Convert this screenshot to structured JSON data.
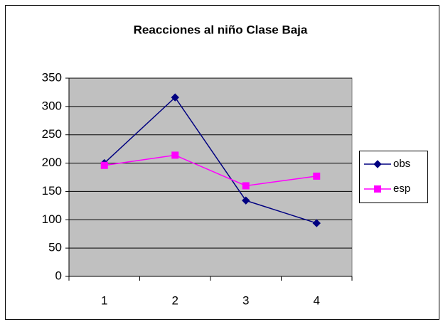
{
  "chart_data": {
    "type": "line",
    "title": "Reacciones al niño Clase Baja",
    "categories": [
      "1",
      "2",
      "3",
      "4"
    ],
    "series": [
      {
        "name": "obs",
        "color": "#000080",
        "marker": "diamond",
        "values": [
          200,
          316,
          134,
          94
        ]
      },
      {
        "name": "esp",
        "color": "#ff00ff",
        "marker": "square",
        "values": [
          196,
          214,
          160,
          177
        ]
      }
    ],
    "ylim": [
      0,
      350
    ],
    "yticks": [
      0,
      50,
      100,
      150,
      200,
      250,
      300,
      350
    ],
    "grid": true,
    "legend": "right",
    "plot_background": "#c0c0c0"
  }
}
